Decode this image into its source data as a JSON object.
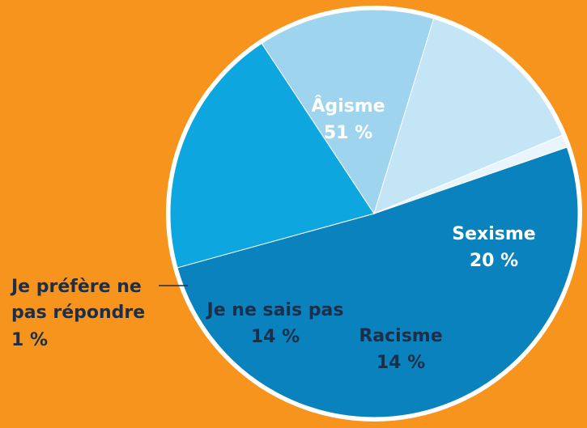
{
  "chart_data": {
    "type": "pie",
    "categories": [
      "Âgisme",
      "Sexisme",
      "Racisme",
      "Je ne sais pas",
      "Je préfère ne pas répondre"
    ],
    "values": [
      51,
      20,
      14,
      14,
      1
    ],
    "value_labels": [
      "51 %",
      "20 %",
      "14 %",
      "14 %",
      "1 %"
    ],
    "colors": [
      "#0a82bd",
      "#0ea6de",
      "#9fd4ee",
      "#c4e5f6",
      "#e8f5fc"
    ]
  }
}
